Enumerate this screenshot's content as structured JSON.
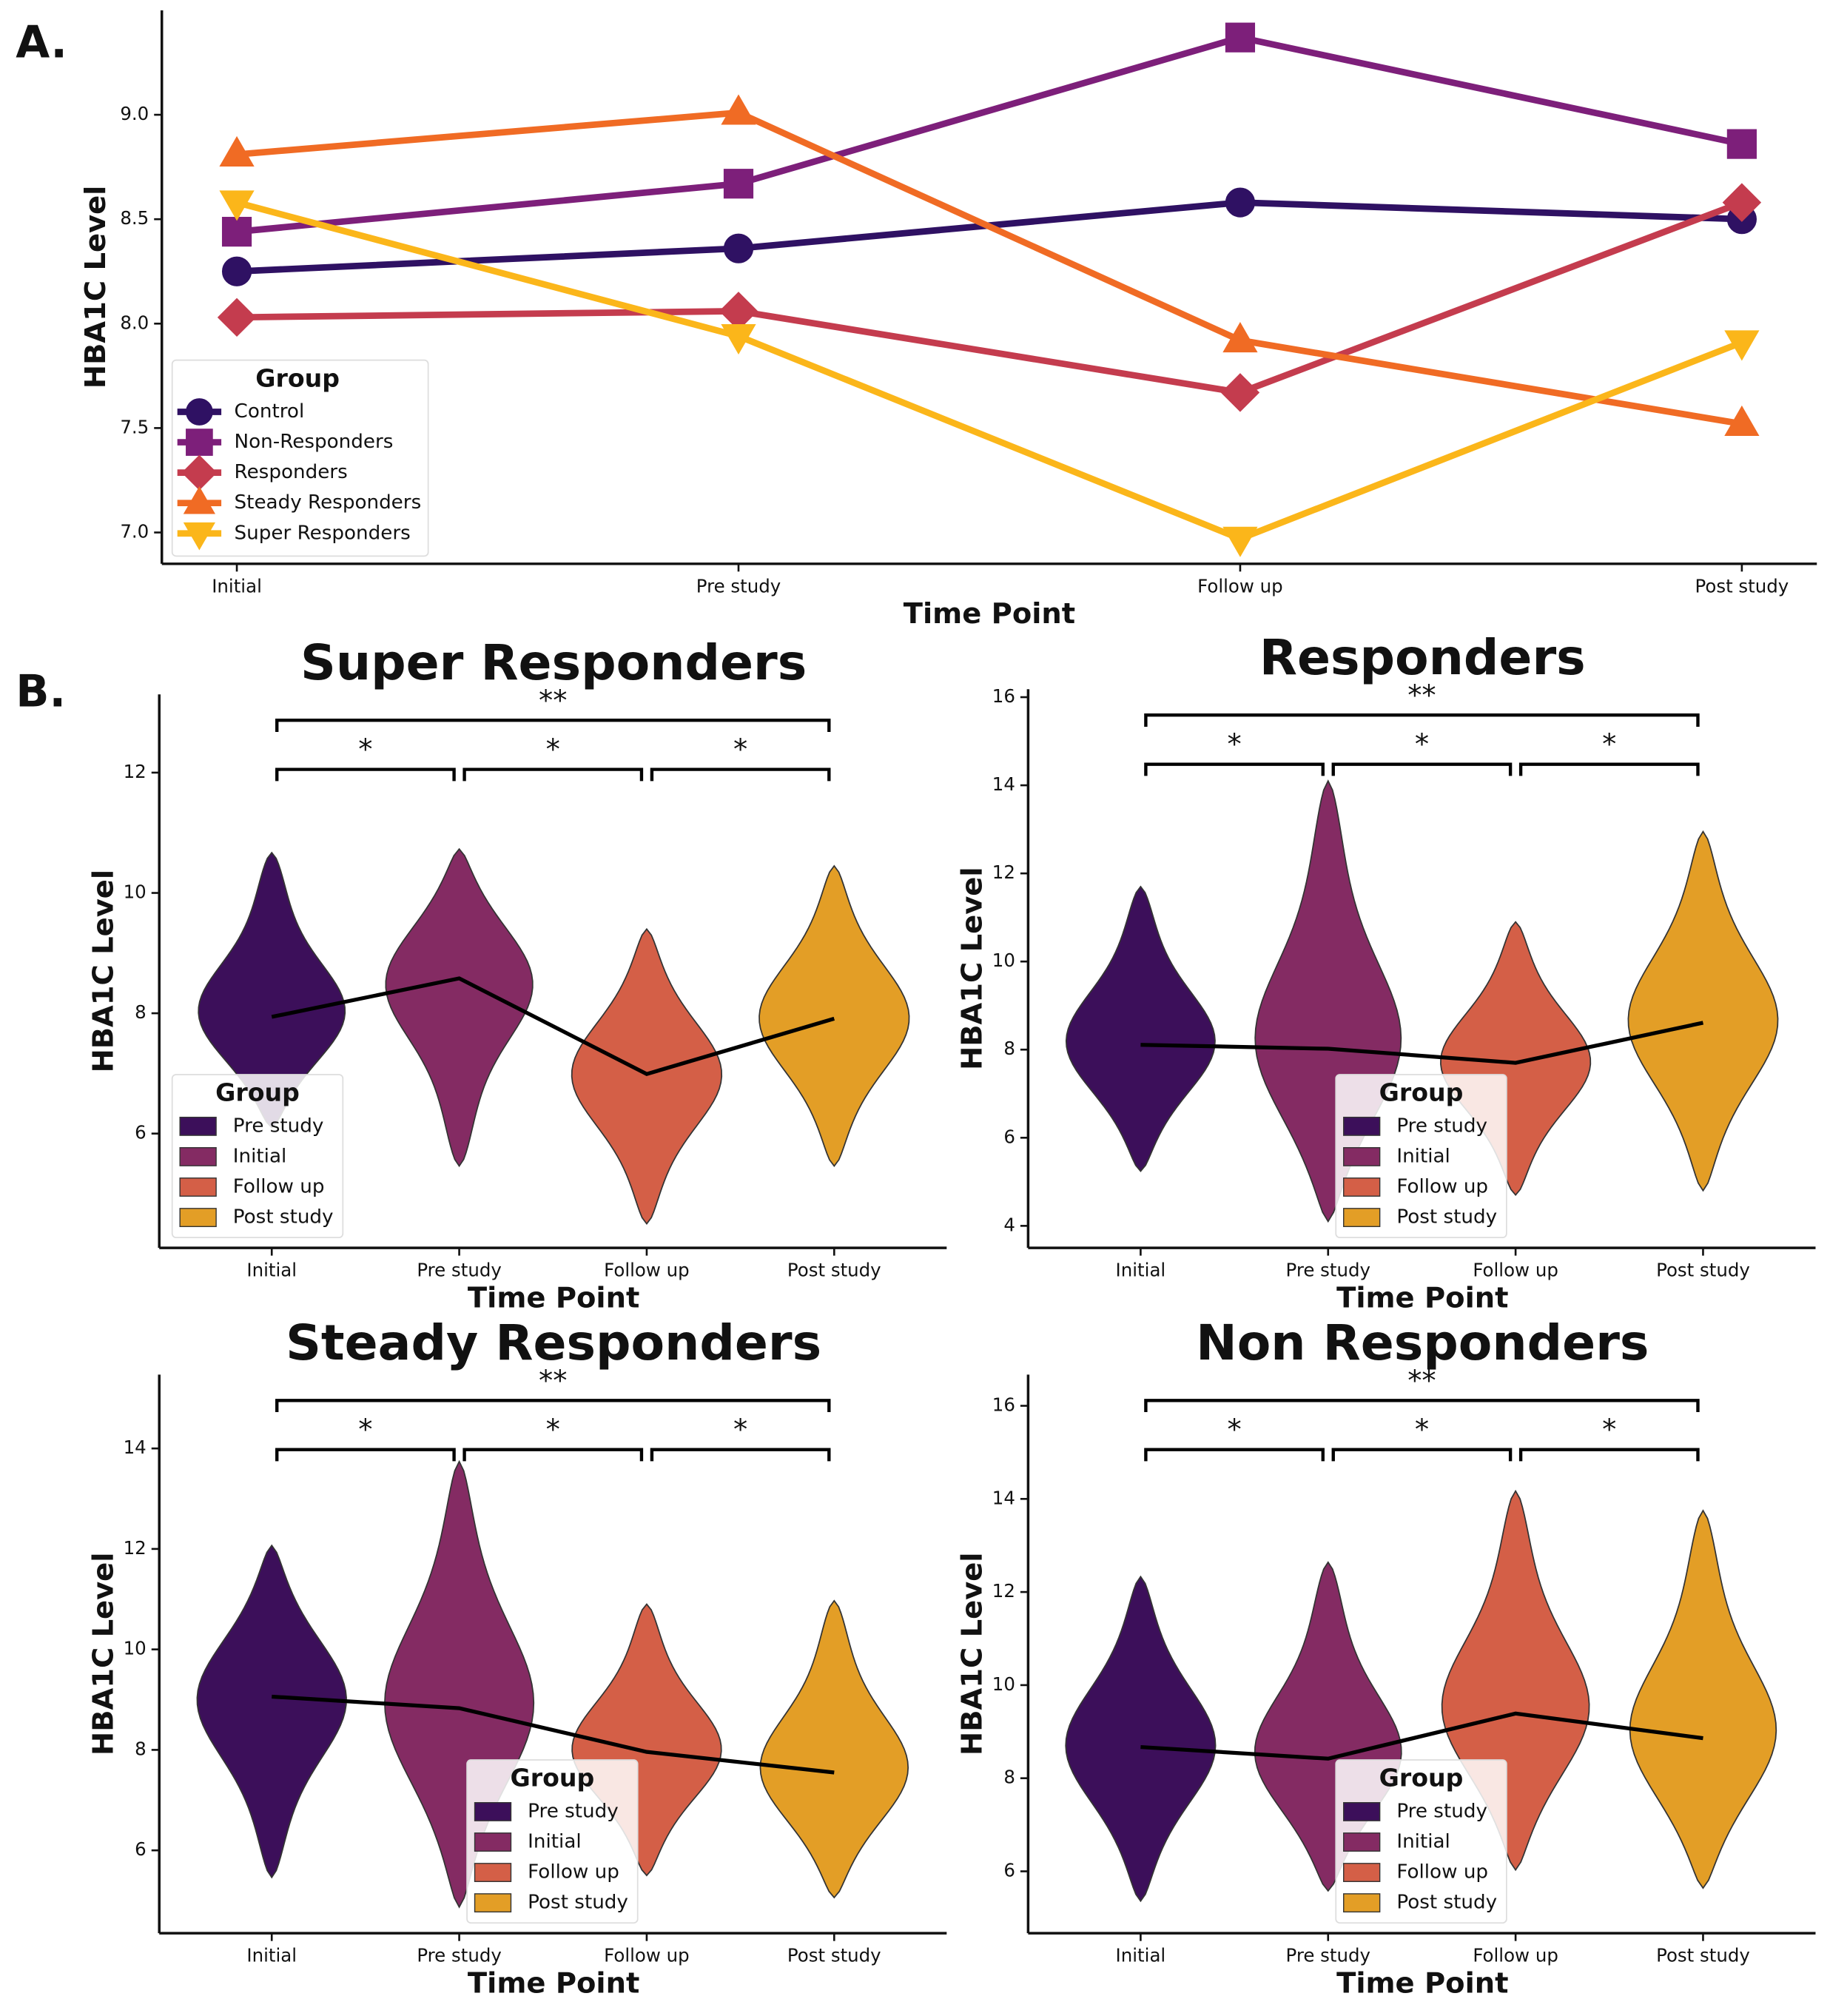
{
  "chart_data": [
    {
      "type": "line",
      "panel_label": "A.",
      "xlabel": "Time Point",
      "ylabel": "HBA1C Level",
      "categories": [
        "Initial",
        "Pre study",
        "Follow up",
        "Post study"
      ],
      "ylim": [
        6.85,
        9.5
      ],
      "yticks": [
        {
          "value": 7,
          "label": "7.0"
        },
        7.5,
        {
          "value": 8,
          "label": "8.0"
        },
        8.5,
        {
          "value": 9,
          "label": "9.0"
        }
      ],
      "legend_title": "Group",
      "legend": "lower left",
      "series": [
        {
          "name": "Control",
          "color": "#2f1163",
          "marker": "circle",
          "values": [
            8.25,
            8.36,
            8.58,
            8.5
          ]
        },
        {
          "name": "Non-Responders",
          "color": "#7d1f7a",
          "marker": "square",
          "values": [
            8.44,
            8.67,
            9.37,
            8.86
          ]
        },
        {
          "name": "Responders",
          "color": "#c43c4e",
          "marker": "diamond",
          "values": [
            8.03,
            8.06,
            7.67,
            8.58
          ]
        },
        {
          "name": "Steady Responders",
          "color": "#f06b24",
          "marker": "triangle-up",
          "values": [
            8.81,
            9.01,
            7.92,
            7.52
          ]
        },
        {
          "name": "Super Responders",
          "color": "#fbb61a",
          "marker": "triangle-down",
          "values": [
            8.58,
            7.94,
            6.97,
            7.91
          ]
        }
      ]
    },
    {
      "type": "violin",
      "panel_label": "B.",
      "title": "Super Responders",
      "xlabel": "Time Point",
      "ylabel": "HBA1C Level",
      "categories": [
        "Initial",
        "Pre study",
        "Follow up",
        "Post study"
      ],
      "ylim": [
        4.1,
        13.3
      ],
      "yticks": [
        6,
        8,
        10,
        12
      ],
      "low": [
        6.1,
        5.46,
        4.5,
        5.46
      ],
      "high": [
        10.67,
        10.73,
        9.4,
        10.45
      ],
      "values": [
        7.94,
        8.58,
        6.99,
        7.91
      ],
      "legend_title": "Group",
      "legend": "lower left",
      "series": [
        {
          "name": "Pre study",
          "color": "#3c0f5a"
        },
        {
          "name": "Initial",
          "color": "#842b63"
        },
        {
          "name": "Follow up",
          "color": "#d45f47"
        },
        {
          "name": "Post study",
          "color": "#e39e26"
        }
      ],
      "brackets": [
        {
          "between": [
            "Initial",
            "Post study"
          ],
          "label": "**"
        },
        {
          "between": [
            "Initial",
            "Pre study"
          ],
          "label": "*"
        },
        {
          "between": [
            "Pre study",
            "Follow up"
          ],
          "label": "*"
        },
        {
          "between": [
            "Follow up",
            "Post study"
          ],
          "label": "*"
        }
      ]
    },
    {
      "type": "violin",
      "title": "Responders",
      "xlabel": "Time Point",
      "ylabel": "HBA1C Level",
      "categories": [
        "Initial",
        "Pre study",
        "Follow up",
        "Post study"
      ],
      "ylim": [
        3.5,
        16.18
      ],
      "yticks": [
        4,
        6,
        8,
        10,
        12,
        14,
        16
      ],
      "low": [
        5.24,
        4.1,
        4.7,
        4.8
      ],
      "high": [
        11.7,
        14.1,
        10.9,
        12.95
      ],
      "values": [
        8.11,
        8.02,
        7.7,
        8.61
      ],
      "legend_title": "Group",
      "legend": "lower center",
      "series": [
        {
          "name": "Pre study",
          "color": "#3c0f5a"
        },
        {
          "name": "Initial",
          "color": "#842b63"
        },
        {
          "name": "Follow up",
          "color": "#d45f47"
        },
        {
          "name": "Post study",
          "color": "#e39e26"
        }
      ],
      "brackets": [
        {
          "between": [
            "Initial",
            "Post study"
          ],
          "label": "**"
        },
        {
          "between": [
            "Initial",
            "Pre study"
          ],
          "label": "*"
        },
        {
          "between": [
            "Pre study",
            "Follow up"
          ],
          "label": "*"
        },
        {
          "between": [
            "Follow up",
            "Post study"
          ],
          "label": "*"
        }
      ]
    },
    {
      "type": "violin",
      "title": "Steady Responders",
      "xlabel": "Time Point",
      "ylabel": "HBA1C Level",
      "categories": [
        "Initial",
        "Pre study",
        "Follow up",
        "Post study"
      ],
      "ylim": [
        4.35,
        15.47
      ],
      "yticks": [
        6,
        8,
        10,
        12,
        14
      ],
      "low": [
        5.46,
        4.87,
        5.5,
        5.06
      ],
      "high": [
        12.07,
        13.74,
        10.9,
        10.97
      ],
      "values": [
        9.06,
        8.83,
        7.96,
        7.55
      ],
      "legend_title": "Group",
      "legend": "lower center",
      "series": [
        {
          "name": "Pre study",
          "color": "#3c0f5a"
        },
        {
          "name": "Initial",
          "color": "#842b63"
        },
        {
          "name": "Follow up",
          "color": "#d45f47"
        },
        {
          "name": "Post study",
          "color": "#e39e26"
        }
      ],
      "brackets": [
        {
          "between": [
            "Initial",
            "Post study"
          ],
          "label": "**"
        },
        {
          "between": [
            "Initial",
            "Pre study"
          ],
          "label": "*"
        },
        {
          "between": [
            "Pre study",
            "Follow up"
          ],
          "label": "*"
        },
        {
          "between": [
            "Follow up",
            "Post study"
          ],
          "label": "*"
        }
      ]
    },
    {
      "type": "violin",
      "title": "Non Responders",
      "xlabel": "Time Point",
      "ylabel": "HBA1C Level",
      "categories": [
        "Initial",
        "Pre study",
        "Follow up",
        "Post study"
      ],
      "ylim": [
        4.67,
        16.67
      ],
      "yticks": [
        6,
        8,
        10,
        12,
        14,
        16
      ],
      "low": [
        5.36,
        5.58,
        6.03,
        5.64
      ],
      "high": [
        12.33,
        12.64,
        14.17,
        13.75
      ],
      "values": [
        8.67,
        8.42,
        9.39,
        8.86
      ],
      "legend_title": "Group",
      "legend": "lower center",
      "series": [
        {
          "name": "Pre study",
          "color": "#3c0f5a"
        },
        {
          "name": "Initial",
          "color": "#842b63"
        },
        {
          "name": "Follow up",
          "color": "#d45f47"
        },
        {
          "name": "Post study",
          "color": "#e39e26"
        }
      ],
      "brackets": [
        {
          "between": [
            "Initial",
            "Post study"
          ],
          "label": "**"
        },
        {
          "between": [
            "Initial",
            "Pre study"
          ],
          "label": "*"
        },
        {
          "between": [
            "Pre study",
            "Follow up"
          ],
          "label": "*"
        },
        {
          "between": [
            "Follow up",
            "Post study"
          ],
          "label": "*"
        }
      ]
    }
  ]
}
